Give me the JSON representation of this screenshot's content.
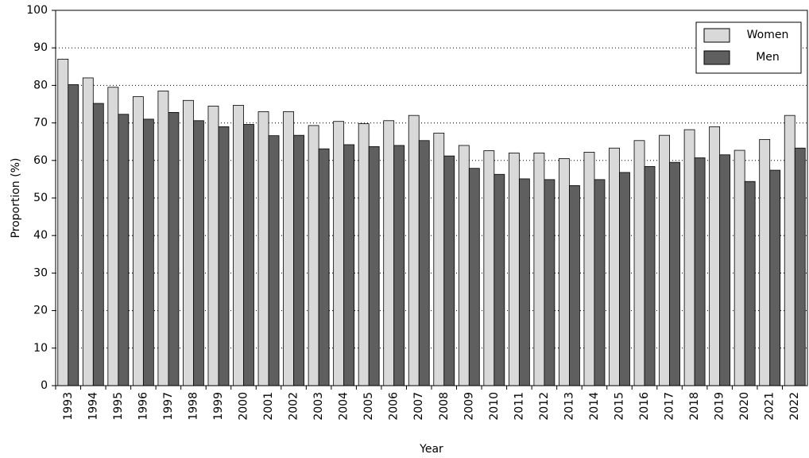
{
  "chart_data": {
    "type": "bar",
    "x_label": "Year",
    "y_label": "Proportion (%)",
    "categories": [
      "1993",
      "1994",
      "1995",
      "1996",
      "1997",
      "1998",
      "1999",
      "2000",
      "2001",
      "2002",
      "2003",
      "2004",
      "2005",
      "2006",
      "2007",
      "2008",
      "2009",
      "2010",
      "2011",
      "2012",
      "2013",
      "2014",
      "2015",
      "2016",
      "2017",
      "2018",
      "2019",
      "2020",
      "2021",
      "2022"
    ],
    "series": [
      {
        "name": "Women",
        "color": "#d9d9d9",
        "values": [
          87,
          82,
          79.5,
          77,
          78.5,
          76,
          74.5,
          74.7,
          73,
          73,
          69.3,
          70.4,
          69.8,
          70.6,
          72,
          67.3,
          64,
          62.6,
          62,
          62,
          60.5,
          62.2,
          63.3,
          65.3,
          66.7,
          68.2,
          69,
          62.7,
          65.6,
          72
        ]
      },
      {
        "name": "Men",
        "color": "#5f5f5f",
        "values": [
          80.2,
          75.2,
          72.3,
          71,
          72.8,
          70.6,
          69,
          69.6,
          66.6,
          66.7,
          63.1,
          64.2,
          63.7,
          64,
          65.3,
          61.2,
          57.9,
          56.3,
          55.1,
          54.9,
          53.3,
          54.9,
          56.8,
          58.4,
          59.5,
          60.7,
          61.5,
          54.4,
          57.4,
          63.3
        ]
      }
    ],
    "ylim": [
      0,
      100
    ],
    "yticks": [
      0,
      10,
      20,
      30,
      40,
      50,
      60,
      70,
      80,
      90,
      100
    ],
    "grid": true,
    "legend": "upper right"
  }
}
